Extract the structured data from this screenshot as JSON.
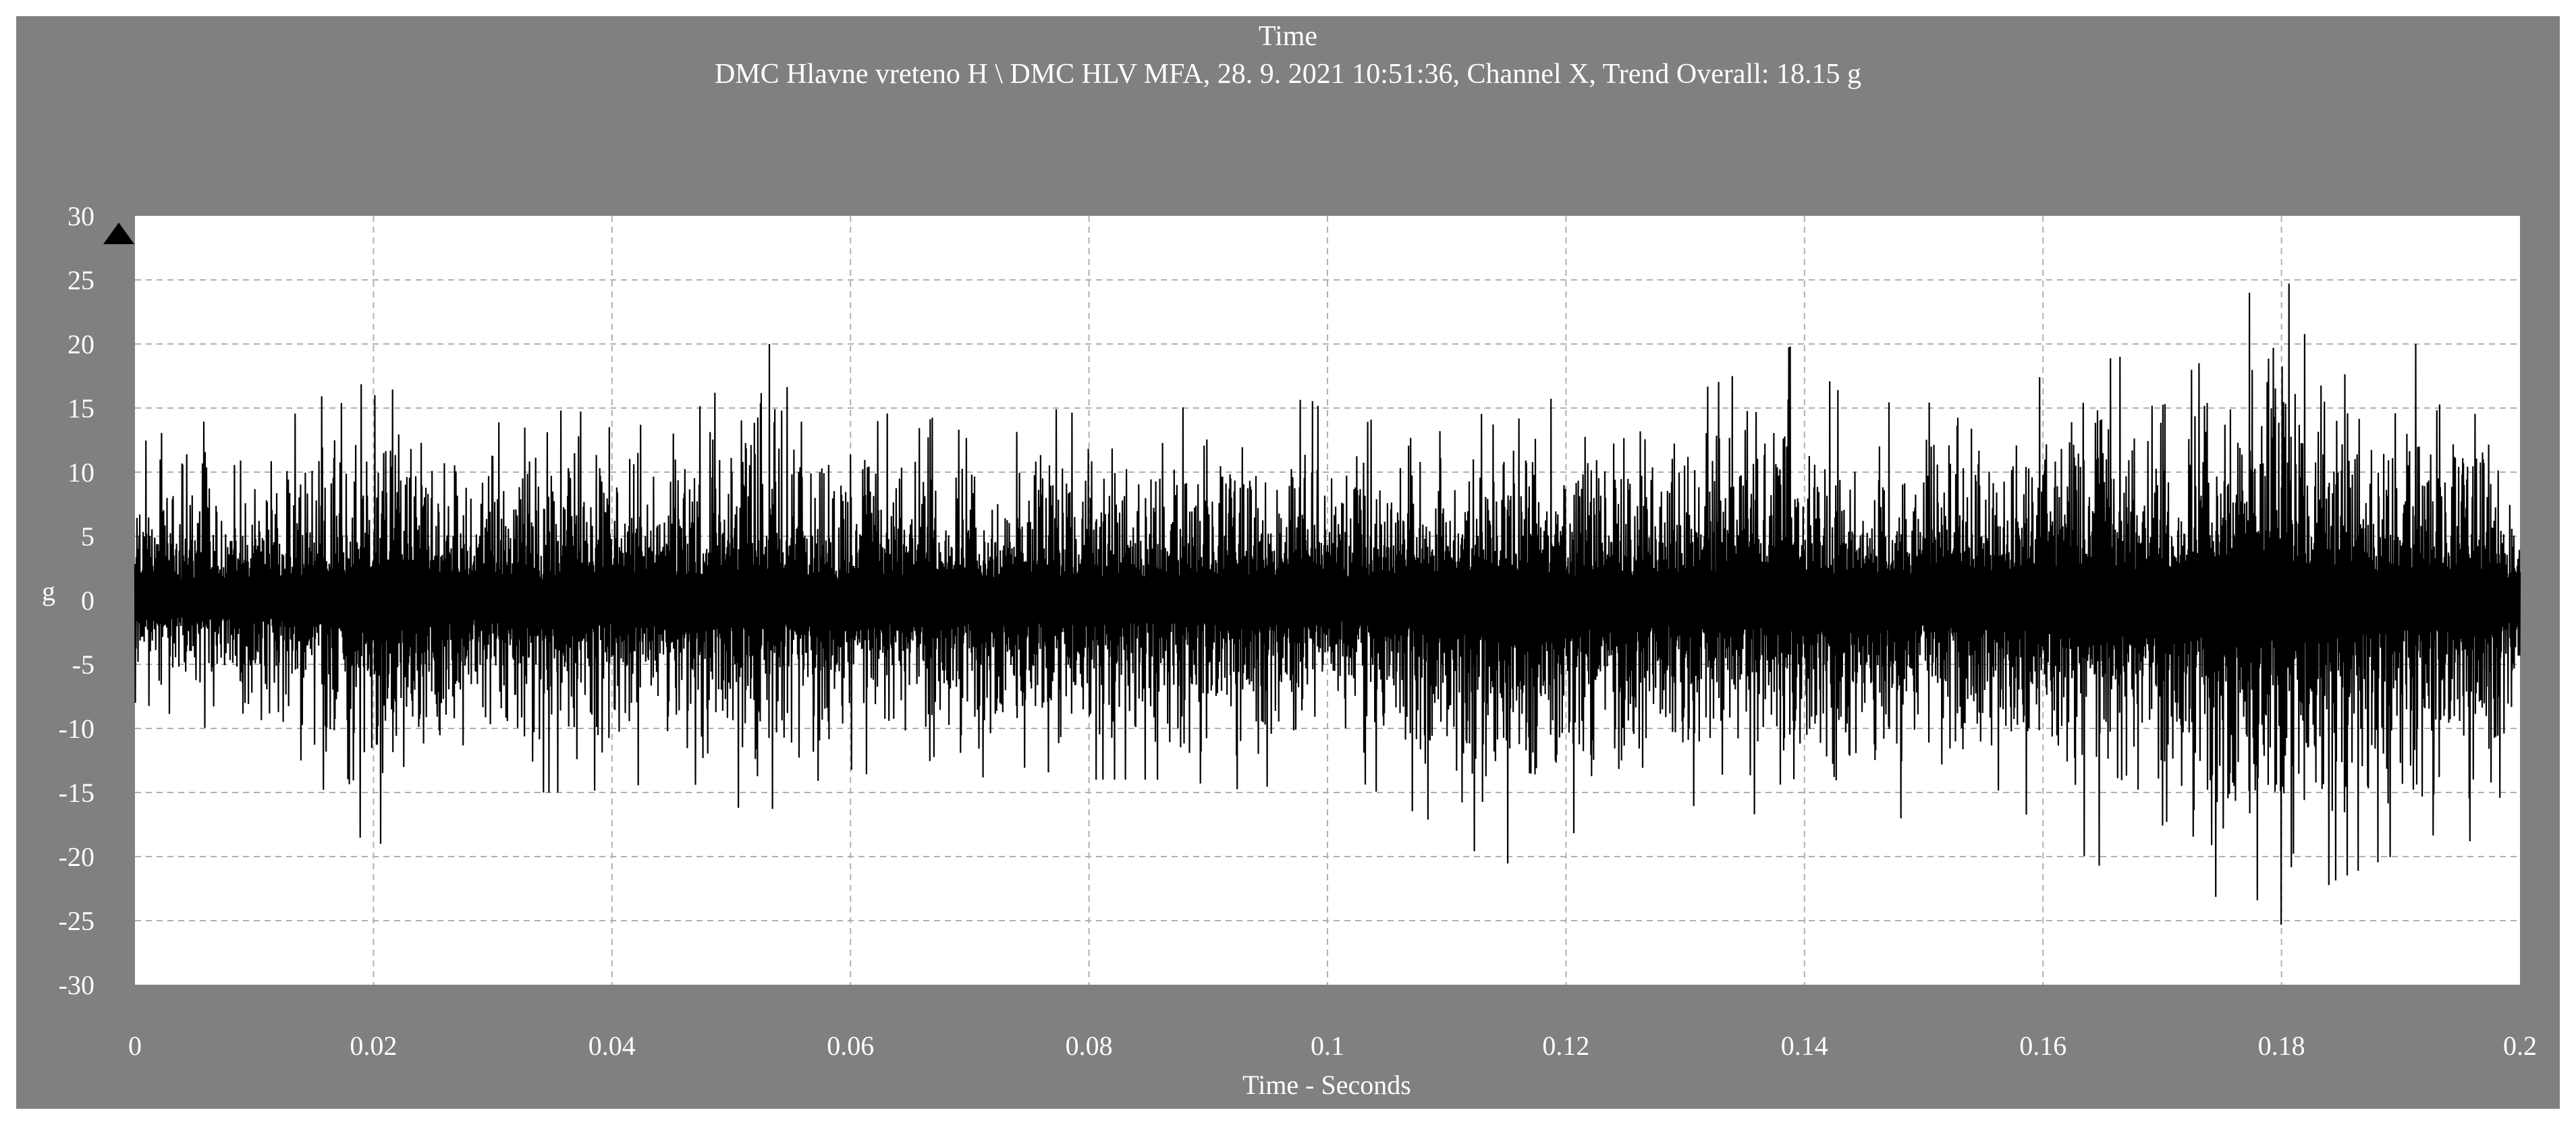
{
  "header": {
    "title": "Time",
    "subtitle": "DMC Hlavne vreteno H \\ DMC HLV MFA, 28. 9. 2021 10:51:36, Channel X, Trend Overall: 18.15 g"
  },
  "colors": {
    "frame": "#808080",
    "plot_background": "#ffffff",
    "signal": "#000000",
    "grid": "#b0b0b0",
    "text": "#ffffff"
  },
  "chart_data": {
    "type": "line",
    "title": "Time",
    "subtitle": "DMC Hlavne vreteno H \\ DMC HLV MFA, 28. 9. 2021 10:51:36, Channel X, Trend Overall: 18.15 g",
    "xlabel": "Time - Seconds",
    "ylabel": "g",
    "xlim": [
      0,
      0.2
    ],
    "ylim": [
      -30,
      30
    ],
    "x_ticks": [
      "0",
      "0.02",
      "0.04",
      "0.06",
      "0.08",
      "0.1",
      "0.12",
      "0.14",
      "0.16",
      "0.18",
      "0.2"
    ],
    "y_ticks": [
      "30",
      "25",
      "20",
      "15",
      "10",
      "5",
      "0",
      "-5",
      "-10",
      "-15",
      "-20",
      "-25",
      "-30"
    ],
    "grid": true,
    "marker": "up-triangle-icon",
    "series": [
      {
        "values_note": "dense vibration waveform, approx. 0.2 s; envelope peaks (x s, g)",
        "peaks": [
          [
            0.0,
            12
          ],
          [
            0.002,
            13
          ],
          [
            0.006,
            14
          ],
          [
            0.0088,
            13
          ],
          [
            0.0125,
            14
          ],
          [
            0.0158,
            16
          ],
          [
            0.0183,
            15
          ],
          [
            0.0201,
            20
          ],
          [
            0.0221,
            20
          ],
          [
            0.0242,
            14
          ],
          [
            0.0277,
            12
          ],
          [
            0.0299,
            14
          ],
          [
            0.0352,
            13
          ],
          [
            0.0372,
            20
          ],
          [
            0.0412,
            14
          ],
          [
            0.0452,
            13
          ],
          [
            0.0472,
            15
          ],
          [
            0.0532,
            20
          ],
          [
            0.0563,
            13
          ],
          [
            0.0624,
            14
          ],
          [
            0.0672,
            18
          ],
          [
            0.0722,
            12
          ],
          [
            0.0768,
            15
          ],
          [
            0.0818,
            14
          ],
          [
            0.0878,
            15
          ],
          [
            0.0922,
            18
          ],
          [
            0.0942,
            13
          ],
          [
            0.0982,
            16
          ],
          [
            0.1018,
            13
          ],
          [
            0.1052,
            15
          ],
          [
            0.1102,
            17
          ],
          [
            0.1142,
            20
          ],
          [
            0.1162,
            17
          ],
          [
            0.1202,
            15
          ],
          [
            0.1242,
            16
          ],
          [
            0.1302,
            16
          ],
          [
            0.1352,
            18
          ],
          [
            0.1392,
            20
          ],
          [
            0.1432,
            16
          ],
          [
            0.1502,
            15
          ],
          [
            0.1532,
            20
          ],
          [
            0.1562,
            16
          ],
          [
            0.1612,
            18
          ],
          [
            0.1662,
            19
          ],
          [
            0.1702,
            19
          ],
          [
            0.1752,
            24
          ],
          [
            0.1782,
            24
          ],
          [
            0.1802,
            26
          ],
          [
            0.1822,
            20
          ],
          [
            0.1852,
            21
          ],
          [
            0.1892,
            17
          ],
          [
            0.1912,
            20
          ],
          [
            0.1962,
            20
          ],
          [
            0.2,
            10
          ]
        ],
        "troughs": [
          [
            0.0005,
            -8
          ],
          [
            0.006,
            -10
          ],
          [
            0.0135,
            -12
          ],
          [
            0.0201,
            -20
          ],
          [
            0.0221,
            -16
          ],
          [
            0.0271,
            -11
          ],
          [
            0.0322,
            -15
          ],
          [
            0.0372,
            -15
          ],
          [
            0.0462,
            -14
          ],
          [
            0.0522,
            -17
          ],
          [
            0.0592,
            -13
          ],
          [
            0.0667,
            -15
          ],
          [
            0.0742,
            -13
          ],
          [
            0.0798,
            -14
          ],
          [
            0.0872,
            -14
          ],
          [
            0.0942,
            -15
          ],
          [
            0.0992,
            -12
          ],
          [
            0.1042,
            -15
          ],
          [
            0.1102,
            -18
          ],
          [
            0.1142,
            -21
          ],
          [
            0.1182,
            -19
          ],
          [
            0.1242,
            -17
          ],
          [
            0.1302,
            -16
          ],
          [
            0.1382,
            -17
          ],
          [
            0.1402,
            -18
          ],
          [
            0.1482,
            -17
          ],
          [
            0.1552,
            -14
          ],
          [
            0.1602,
            -18
          ],
          [
            0.1652,
            -21
          ],
          [
            0.1702,
            -21
          ],
          [
            0.1762,
            -24
          ],
          [
            0.1792,
            -23
          ],
          [
            0.1802,
            -26
          ],
          [
            0.1842,
            -22
          ],
          [
            0.1892,
            -20
          ],
          [
            0.1902,
            -18
          ],
          [
            0.1972,
            -19
          ],
          [
            0.2,
            -10
          ]
        ]
      }
    ]
  }
}
